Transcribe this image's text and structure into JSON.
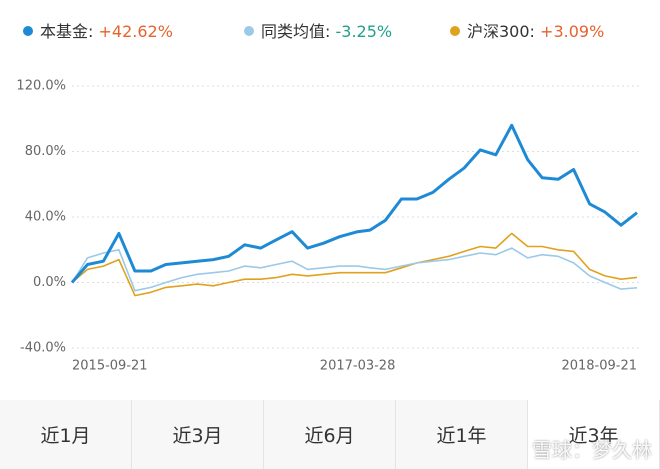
{
  "chart_data": {
    "type": "line",
    "x": [
      "2015-09-21",
      "2015-10-21",
      "2015-11-21",
      "2015-12-21",
      "2016-01-21",
      "2016-02-21",
      "2016-03-21",
      "2016-04-21",
      "2016-05-21",
      "2016-06-21",
      "2016-07-21",
      "2016-08-21",
      "2016-09-21",
      "2016-10-21",
      "2016-11-21",
      "2016-12-21",
      "2017-01-21",
      "2017-02-21",
      "2017-03-28",
      "2017-04-21",
      "2017-05-21",
      "2017-06-21",
      "2017-07-21",
      "2017-08-21",
      "2017-09-21",
      "2017-10-21",
      "2017-11-21",
      "2017-12-21",
      "2018-01-21",
      "2018-02-21",
      "2018-03-21",
      "2018-04-21",
      "2018-05-21",
      "2018-06-21",
      "2018-07-21",
      "2018-08-21",
      "2018-09-21"
    ],
    "series": [
      {
        "name": "本基金",
        "color": "#1e8ad6",
        "return": 42.62,
        "return_label": "+42.62%",
        "return_color": "#e8622c",
        "values": [
          0,
          11,
          13,
          30,
          7,
          7,
          11,
          12,
          13,
          14,
          16,
          23,
          21,
          26,
          31,
          21,
          24,
          28,
          31,
          32,
          38,
          51,
          51,
          55,
          63,
          70,
          81,
          78,
          96,
          75,
          64,
          63,
          69,
          48,
          43,
          35,
          42.62
        ]
      },
      {
        "name": "同类均值",
        "color": "#9cc9e8",
        "return": -3.25,
        "return_label": "-3.25%",
        "return_color": "#21a08c",
        "values": [
          0,
          15,
          18,
          20,
          -5,
          -3,
          0,
          3,
          5,
          6,
          7,
          10,
          9,
          11,
          13,
          8,
          9,
          10,
          10,
          9,
          8,
          10,
          12,
          13,
          14,
          16,
          18,
          17,
          21,
          15,
          17,
          16,
          12,
          4,
          0,
          -4,
          -3.25
        ]
      },
      {
        "name": "沪深300",
        "color": "#e0a21e",
        "return": 3.09,
        "return_label": "+3.09%",
        "return_color": "#e8622c",
        "values": [
          0,
          8,
          10,
          14,
          -8,
          -6,
          -3,
          -2,
          -1,
          -2,
          0,
          2,
          2,
          3,
          5,
          4,
          5,
          6,
          6,
          6,
          6,
          9,
          12,
          14,
          16,
          19,
          22,
          21,
          30,
          22,
          22,
          20,
          19,
          8,
          4,
          2,
          3.09
        ]
      }
    ],
    "ylim": [
      -40,
      120
    ],
    "yticks": [
      {
        "value": -40,
        "label": "-40.0%"
      },
      {
        "value": 0,
        "label": "0.0%"
      },
      {
        "value": 40,
        "label": "40.0%"
      },
      {
        "value": 80,
        "label": "80.0%"
      },
      {
        "value": 120,
        "label": "120.0%"
      }
    ],
    "xticks": [
      "2015-09-21",
      "2017-03-28",
      "2018-09-21"
    ],
    "grid": true
  },
  "tabs": [
    "近1月",
    "近3月",
    "近6月",
    "近1年",
    "近3年"
  ],
  "selected_tab": 4,
  "watermark": "雪球：梦久林"
}
